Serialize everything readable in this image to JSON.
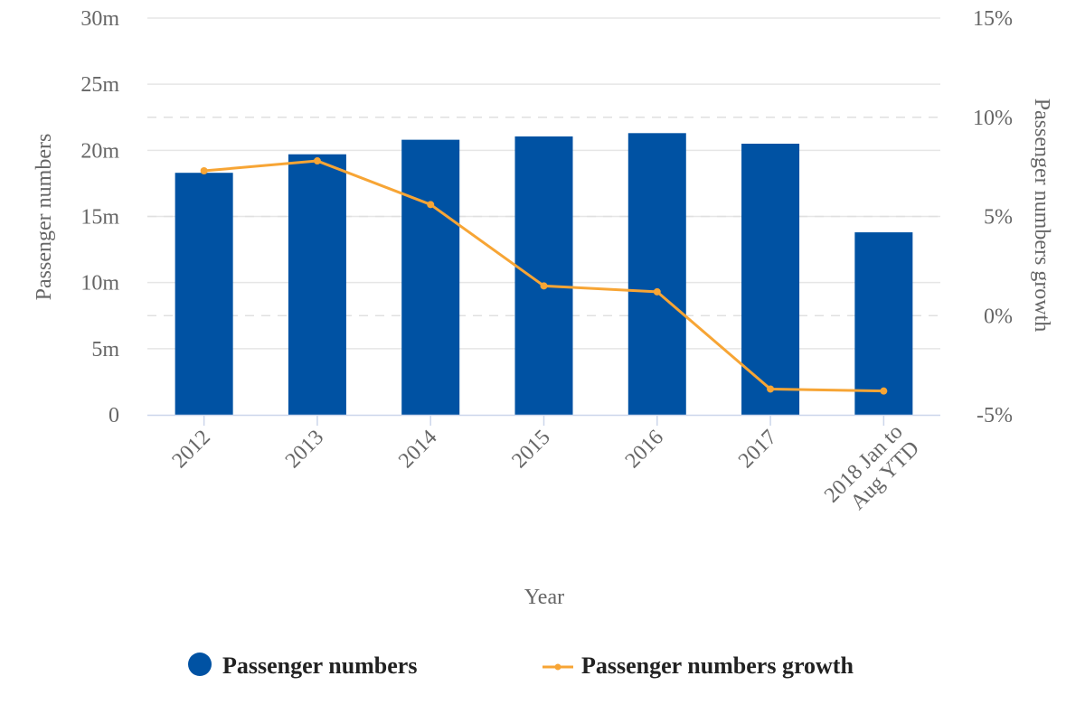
{
  "chart_data": {
    "type": "bar",
    "categories": [
      "2012",
      "2013",
      "2014",
      "2015",
      "2016",
      "2017",
      "2018 Jan to Aug YTD"
    ],
    "category_lines": [
      [
        "2012"
      ],
      [
        "2013"
      ],
      [
        "2014"
      ],
      [
        "2015"
      ],
      [
        "2016"
      ],
      [
        "2017"
      ],
      [
        "2018 Jan to",
        "Aug YTD"
      ]
    ],
    "xlabel": "Year",
    "ylabel": "Passenger numbers",
    "y2label": "Passenger numbers growth",
    "ylim": [
      0,
      30000000
    ],
    "y2lim": [
      -5,
      15
    ],
    "y_ticks": [
      {
        "value": 0,
        "label": "0"
      },
      {
        "value": 5000000,
        "label": "5m"
      },
      {
        "value": 10000000,
        "label": "10m"
      },
      {
        "value": 15000000,
        "label": "15m"
      },
      {
        "value": 20000000,
        "label": "20m"
      },
      {
        "value": 25000000,
        "label": "25m"
      },
      {
        "value": 30000000,
        "label": "30m"
      }
    ],
    "y2_ticks": [
      {
        "value": -5,
        "label": "-5%"
      },
      {
        "value": 0,
        "label": "0%"
      },
      {
        "value": 5,
        "label": "5%"
      },
      {
        "value": 10,
        "label": "10%"
      },
      {
        "value": 15,
        "label": "15%"
      }
    ],
    "grid": true,
    "legend_position": "bottom",
    "series": [
      {
        "name": "Passenger numbers",
        "type": "bar",
        "axis": "left",
        "color": "#0052a3",
        "values": [
          18300000,
          19700000,
          20800000,
          21050000,
          21300000,
          20500000,
          13800000
        ]
      },
      {
        "name": "Passenger numbers growth",
        "type": "line",
        "axis": "right",
        "color": "#f7a535",
        "values": [
          7.3,
          7.8,
          5.6,
          1.5,
          1.2,
          -3.7,
          -3.8
        ]
      }
    ]
  }
}
